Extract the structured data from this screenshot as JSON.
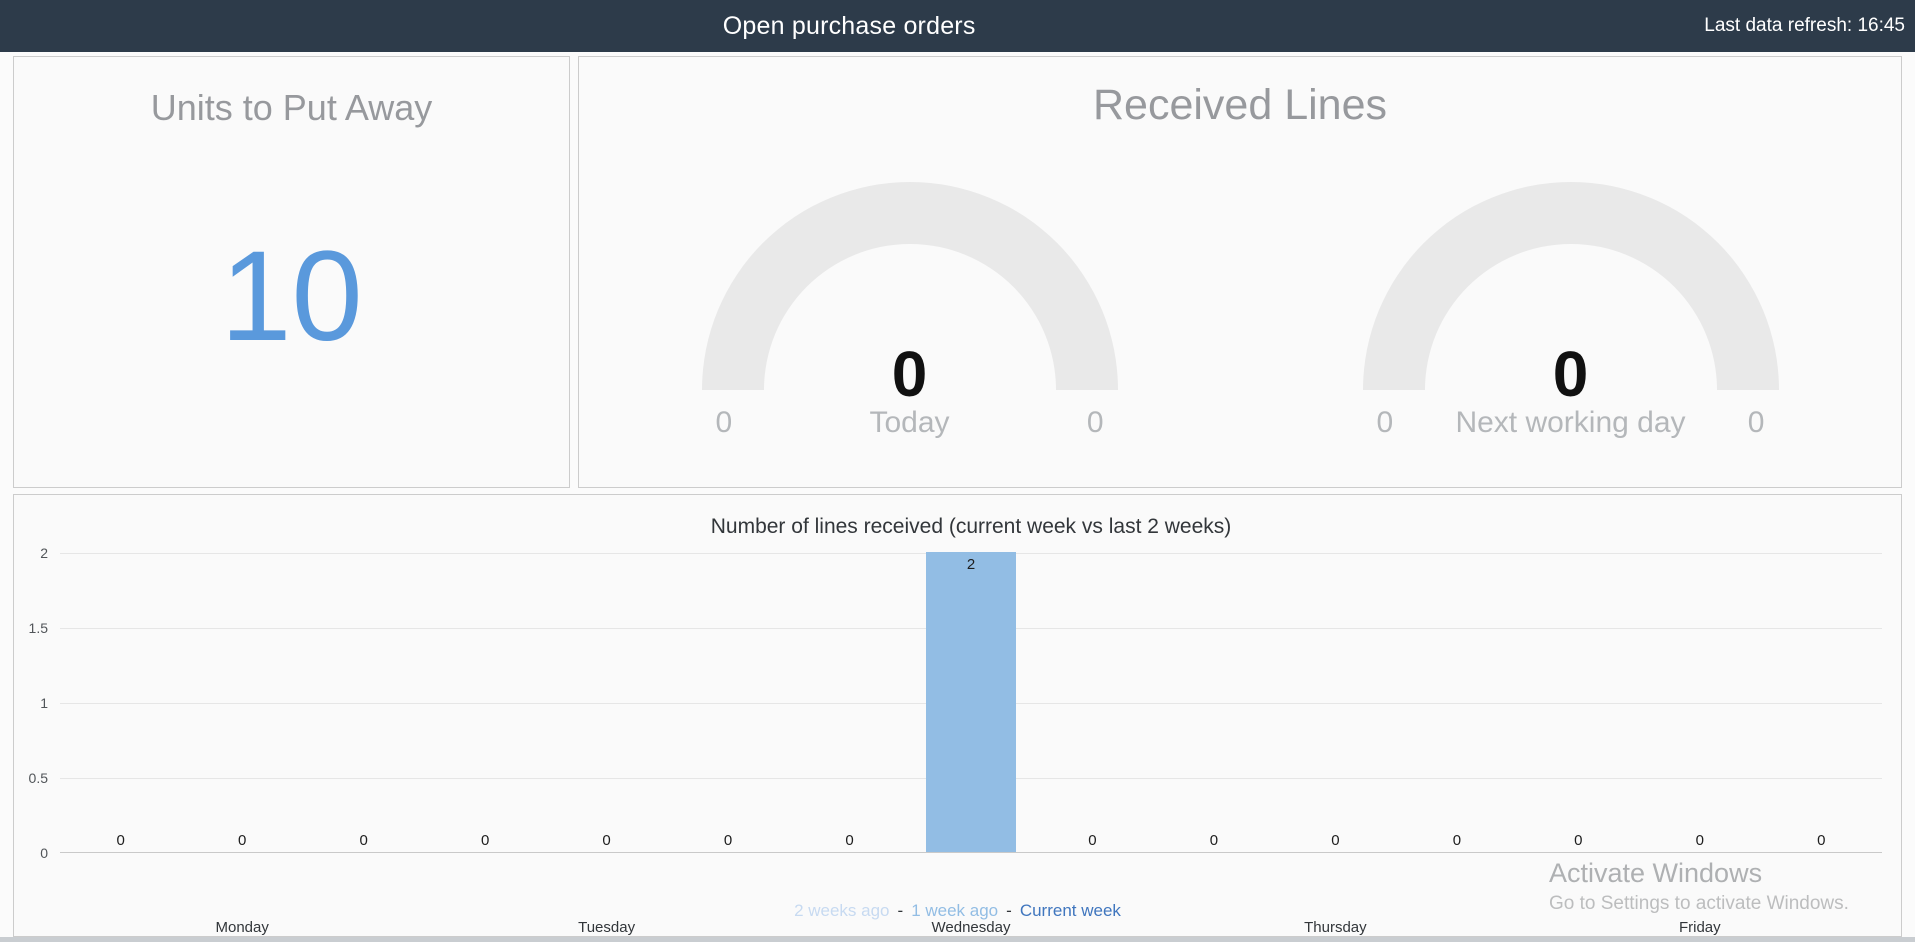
{
  "header": {
    "title": "Open purchase orders",
    "last_refresh_label": "Last data refresh:",
    "last_refresh_time": "16:45"
  },
  "tiles": {
    "units_to_put_away": {
      "title": "Units to Put Away",
      "value": "10",
      "value_color": "#5a99dc"
    },
    "received_lines": {
      "title": "Received Lines",
      "gauges": [
        {
          "label": "Today",
          "value": "0",
          "min": "0",
          "max": "0"
        },
        {
          "label": "Next working day",
          "value": "0",
          "min": "0",
          "max": "0"
        }
      ]
    }
  },
  "chart_data": {
    "type": "bar",
    "title": "Number of lines received (current week vs last 2 weeks)",
    "categories": [
      "Monday",
      "Tuesday",
      "Wednesday",
      "Thursday",
      "Friday"
    ],
    "series": [
      {
        "name": "2 weeks ago",
        "color": "#c7daf1",
        "values": [
          0,
          0,
          0,
          0,
          0
        ]
      },
      {
        "name": "1 week ago",
        "color": "#92bde4",
        "values": [
          0,
          0,
          2,
          0,
          0
        ]
      },
      {
        "name": "Current week",
        "color": "#4076be",
        "values": [
          0,
          0,
          0,
          0,
          0
        ]
      }
    ],
    "xlabel": "",
    "ylabel": "",
    "ylim": [
      0,
      2
    ],
    "yticks": [
      0,
      0.5,
      1,
      1.5,
      2
    ],
    "grid": true,
    "data_labels": true,
    "legend_position": "bottom",
    "legend_separator": "-"
  },
  "watermark": {
    "line1": "Activate Windows",
    "line2": "Go to Settings to activate Windows."
  }
}
